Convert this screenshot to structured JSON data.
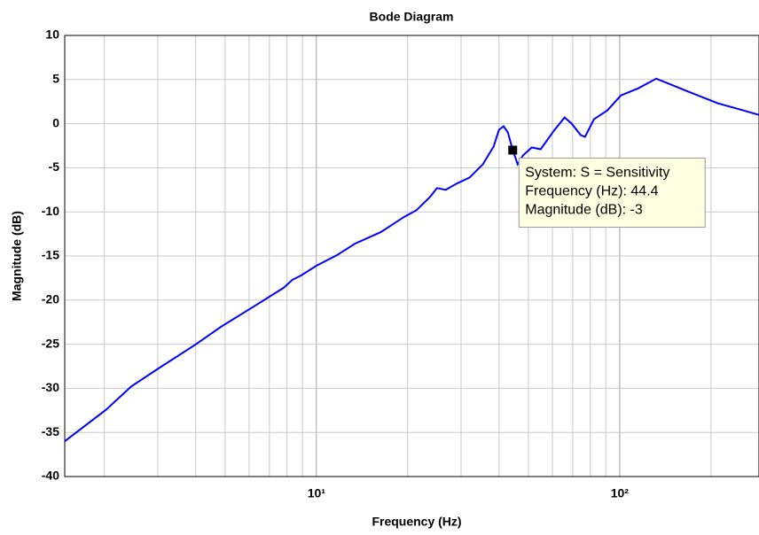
{
  "chart_data": {
    "type": "line",
    "title": "Bode Diagram",
    "x_label": "Frequency  (Hz)",
    "y_label": "Magnitude (dB)",
    "log_x": true,
    "grid": true,
    "xlim": [
      1.48,
      288
    ],
    "ylim": [
      -40,
      10
    ],
    "xticks": [
      {
        "value": 10,
        "label": "10¹"
      },
      {
        "value": 100,
        "label": "10²"
      }
    ],
    "xminorticks": [
      2,
      3,
      4,
      5,
      6,
      7,
      8,
      9,
      20,
      30,
      40,
      50,
      60,
      70,
      80,
      90,
      200
    ],
    "yticks": [
      10,
      5,
      0,
      -5,
      -10,
      -15,
      -20,
      -25,
      -30,
      -35,
      -40
    ],
    "x": [
      1.48,
      2.03,
      2.45,
      3.03,
      3.97,
      4.86,
      6.37,
      7.8,
      8.34,
      8.92,
      10,
      11.7,
      13.4,
      16.3,
      19.4,
      21.4,
      23.7,
      25,
      26.7,
      29,
      32,
      35.4,
      38.4,
      40,
      41.4,
      42.8,
      44.4,
      46.1,
      48,
      51.3,
      54.9,
      60.7,
      65.8,
      69.5,
      74.4,
      76.9,
      82.3,
      91,
      101,
      115,
      132,
      146,
      172,
      211,
      250,
      287
    ],
    "series": [
      {
        "name": "S = Sensitivity",
        "color": "#0000ff",
        "values": [
          -36.0,
          -32.4,
          -29.8,
          -27.7,
          -25.1,
          -23.0,
          -20.5,
          -18.6,
          -17.7,
          -17.2,
          -16.1,
          -14.9,
          -13.6,
          -12.3,
          -10.6,
          -9.8,
          -8.3,
          -7.3,
          -7.5,
          -6.8,
          -6.1,
          -4.6,
          -2.6,
          -0.7,
          -0.3,
          -1.0,
          -3.0,
          -4.6,
          -3.6,
          -2.7,
          -2.9,
          -0.8,
          0.7,
          0.0,
          -1.3,
          -1.5,
          0.5,
          1.5,
          3.2,
          4.0,
          5.1,
          4.5,
          3.5,
          2.3,
          1.6,
          1.0
        ]
      }
    ],
    "datatip": {
      "x": 44.4,
      "y": -3,
      "lines": [
        "System: S = Sensitivity",
        "Frequency (Hz): 44.4",
        "Magnitude (dB): -3"
      ]
    }
  }
}
